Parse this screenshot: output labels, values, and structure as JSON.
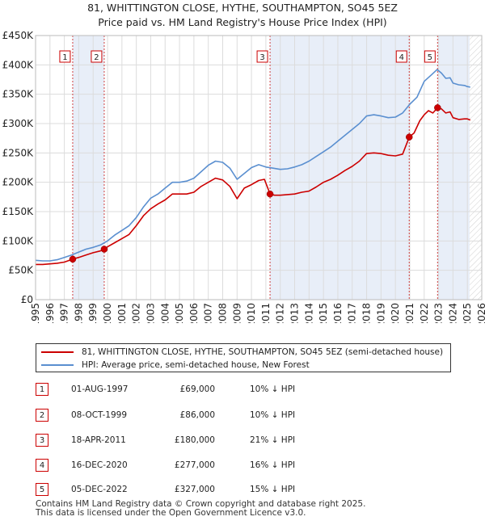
{
  "title_line1": "81, WHITTINGTON CLOSE, HYTHE, SOUTHAMPTON, SO45 5EZ",
  "title_line2": "Price paid vs. HM Land Registry's House Price Index (HPI)",
  "chart_data": {
    "type": "line",
    "x_range": [
      1995,
      2026
    ],
    "ylim": [
      0,
      450000
    ],
    "y_ticks": [
      {
        "value": 0,
        "label": "£0"
      },
      {
        "value": 50000,
        "label": "£50K"
      },
      {
        "value": 100000,
        "label": "£100K"
      },
      {
        "value": 150000,
        "label": "£150K"
      },
      {
        "value": 200000,
        "label": "£200K"
      },
      {
        "value": 250000,
        "label": "£250K"
      },
      {
        "value": 300000,
        "label": "£300K"
      },
      {
        "value": 350000,
        "label": "£350K"
      },
      {
        "value": 400000,
        "label": "£400K"
      },
      {
        "value": 450000,
        "label": "£450K"
      }
    ],
    "x_ticks": [
      "1995",
      "1996",
      "1997",
      "1998",
      "1999",
      "2000",
      "2001",
      "2002",
      "2003",
      "2004",
      "2005",
      "2006",
      "2007",
      "2008",
      "2009",
      "2010",
      "2011",
      "2012",
      "2013",
      "2014",
      "2015",
      "2016",
      "2017",
      "2018",
      "2019",
      "2020",
      "2021",
      "2022",
      "2023",
      "2024",
      "2025",
      "2026"
    ],
    "future_from": 2025.15,
    "series": [
      {
        "name": "81, WHITTINGTON CLOSE, HYTHE, SOUTHAMPTON, SO45 5EZ (semi-detached house)",
        "color": "#cc0000",
        "points": [
          [
            1995.0,
            60000
          ],
          [
            1995.5,
            60000
          ],
          [
            1996.0,
            61000
          ],
          [
            1996.5,
            62000
          ],
          [
            1997.0,
            64000
          ],
          [
            1997.58,
            69000
          ],
          [
            1998.0,
            72000
          ],
          [
            1998.5,
            76000
          ],
          [
            1999.0,
            80000
          ],
          [
            1999.5,
            83000
          ],
          [
            1999.77,
            86000
          ],
          [
            2000.0,
            90000
          ],
          [
            2000.5,
            97000
          ],
          [
            2001.0,
            104000
          ],
          [
            2001.5,
            111000
          ],
          [
            2002.0,
            126000
          ],
          [
            2002.5,
            143000
          ],
          [
            2003.0,
            155000
          ],
          [
            2003.5,
            163000
          ],
          [
            2004.0,
            170000
          ],
          [
            2004.5,
            180000
          ],
          [
            2005.0,
            180000
          ],
          [
            2005.5,
            180000
          ],
          [
            2006.0,
            183000
          ],
          [
            2006.5,
            193000
          ],
          [
            2007.0,
            200000
          ],
          [
            2007.5,
            207000
          ],
          [
            2008.0,
            204000
          ],
          [
            2008.5,
            193000
          ],
          [
            2009.0,
            172000
          ],
          [
            2009.5,
            190000
          ],
          [
            2010.0,
            196000
          ],
          [
            2010.5,
            203000
          ],
          [
            2010.9,
            205000
          ],
          [
            2011.29,
            180000
          ],
          [
            2011.6,
            178000
          ],
          [
            2012.0,
            178000
          ],
          [
            2012.5,
            179000
          ],
          [
            2013.0,
            180000
          ],
          [
            2013.5,
            183000
          ],
          [
            2014.0,
            185000
          ],
          [
            2014.5,
            192000
          ],
          [
            2015.0,
            200000
          ],
          [
            2015.5,
            205000
          ],
          [
            2016.0,
            212000
          ],
          [
            2016.5,
            220000
          ],
          [
            2017.0,
            227000
          ],
          [
            2017.5,
            236000
          ],
          [
            2018.0,
            249000
          ],
          [
            2018.5,
            250000
          ],
          [
            2019.0,
            249000
          ],
          [
            2019.5,
            246000
          ],
          [
            2020.0,
            245000
          ],
          [
            2020.5,
            248000
          ],
          [
            2020.96,
            277000
          ],
          [
            2021.3,
            284000
          ],
          [
            2021.7,
            305000
          ],
          [
            2022.0,
            315000
          ],
          [
            2022.3,
            322000
          ],
          [
            2022.6,
            318000
          ],
          [
            2022.93,
            327000
          ],
          [
            2023.2,
            325000
          ],
          [
            2023.5,
            318000
          ],
          [
            2023.8,
            320000
          ],
          [
            2024.0,
            310000
          ],
          [
            2024.4,
            307000
          ],
          [
            2024.8,
            308000
          ],
          [
            2025.0,
            308000
          ],
          [
            2025.2,
            306000
          ]
        ]
      },
      {
        "name": "HPI: Average price, semi-detached house, New Forest",
        "color": "#5a8fd0",
        "points": [
          [
            1995.0,
            67000
          ],
          [
            1995.5,
            66000
          ],
          [
            1996.0,
            66000
          ],
          [
            1996.5,
            68000
          ],
          [
            1997.0,
            72000
          ],
          [
            1997.5,
            76000
          ],
          [
            1998.0,
            81000
          ],
          [
            1998.5,
            86000
          ],
          [
            1999.0,
            89000
          ],
          [
            1999.5,
            93000
          ],
          [
            2000.0,
            100000
          ],
          [
            2000.5,
            110000
          ],
          [
            2001.0,
            118000
          ],
          [
            2001.5,
            126000
          ],
          [
            2002.0,
            140000
          ],
          [
            2002.5,
            158000
          ],
          [
            2003.0,
            173000
          ],
          [
            2003.5,
            180000
          ],
          [
            2004.0,
            190000
          ],
          [
            2004.5,
            200000
          ],
          [
            2005.0,
            200000
          ],
          [
            2005.5,
            202000
          ],
          [
            2006.0,
            207000
          ],
          [
            2006.5,
            218000
          ],
          [
            2007.0,
            229000
          ],
          [
            2007.5,
            236000
          ],
          [
            2008.0,
            234000
          ],
          [
            2008.5,
            224000
          ],
          [
            2009.0,
            205000
          ],
          [
            2009.5,
            215000
          ],
          [
            2010.0,
            225000
          ],
          [
            2010.5,
            230000
          ],
          [
            2011.0,
            226000
          ],
          [
            2011.5,
            224000
          ],
          [
            2012.0,
            222000
          ],
          [
            2012.5,
            223000
          ],
          [
            2013.0,
            226000
          ],
          [
            2013.5,
            230000
          ],
          [
            2014.0,
            236000
          ],
          [
            2014.5,
            244000
          ],
          [
            2015.0,
            252000
          ],
          [
            2015.5,
            260000
          ],
          [
            2016.0,
            270000
          ],
          [
            2016.5,
            280000
          ],
          [
            2017.0,
            290000
          ],
          [
            2017.5,
            300000
          ],
          [
            2018.0,
            313000
          ],
          [
            2018.5,
            315000
          ],
          [
            2019.0,
            313000
          ],
          [
            2019.5,
            310000
          ],
          [
            2020.0,
            311000
          ],
          [
            2020.5,
            318000
          ],
          [
            2021.0,
            333000
          ],
          [
            2021.5,
            345000
          ],
          [
            2022.0,
            372000
          ],
          [
            2022.5,
            383000
          ],
          [
            2022.9,
            392000
          ],
          [
            2023.2,
            386000
          ],
          [
            2023.5,
            377000
          ],
          [
            2023.8,
            378000
          ],
          [
            2024.0,
            369000
          ],
          [
            2024.4,
            366000
          ],
          [
            2024.8,
            365000
          ],
          [
            2025.0,
            363000
          ],
          [
            2025.2,
            362000
          ]
        ]
      }
    ],
    "sale_markers": [
      {
        "num": "1",
        "x": 1997.58,
        "y": 69000
      },
      {
        "num": "2",
        "x": 1999.77,
        "y": 86000
      },
      {
        "num": "3",
        "x": 2011.29,
        "y": 180000
      },
      {
        "num": "4",
        "x": 2020.96,
        "y": 277000
      },
      {
        "num": "5",
        "x": 2022.93,
        "y": 327000
      }
    ],
    "shaded_spans": [
      [
        1997.58,
        1999.77
      ],
      [
        2011.29,
        2020.96
      ],
      [
        2022.93,
        2025.15
      ]
    ]
  },
  "legend": [
    {
      "label": "81, WHITTINGTON CLOSE, HYTHE, SOUTHAMPTON, SO45 5EZ (semi-detached house)",
      "color": "#cc0000"
    },
    {
      "label": "HPI: Average price, semi-detached house, New Forest",
      "color": "#5a8fd0"
    }
  ],
  "sales": [
    {
      "num": "1",
      "date": "01-AUG-1997",
      "price": "£69,000",
      "hpi": "10% ↓ HPI"
    },
    {
      "num": "2",
      "date": "08-OCT-1999",
      "price": "£86,000",
      "hpi": "10% ↓ HPI"
    },
    {
      "num": "3",
      "date": "18-APR-2011",
      "price": "£180,000",
      "hpi": "21% ↓ HPI"
    },
    {
      "num": "4",
      "date": "16-DEC-2020",
      "price": "£277,000",
      "hpi": "16% ↓ HPI"
    },
    {
      "num": "5",
      "date": "05-DEC-2022",
      "price": "£327,000",
      "hpi": "15% ↓ HPI"
    }
  ],
  "footer_line1": "Contains HM Land Registry data © Crown copyright and database right 2025.",
  "footer_line2": "This data is licensed under the Open Government Licence v3.0."
}
